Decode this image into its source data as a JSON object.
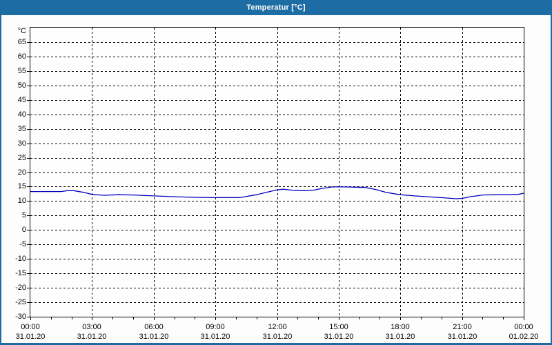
{
  "window": {
    "title": "Temperatur [°C]"
  },
  "colors": {
    "titlebar": "#1d6da4",
    "frame_border": "#1d6da4",
    "line": "#0000c0",
    "grid": "#000000",
    "background": "#fdfdfd"
  },
  "chart_data": {
    "type": "line",
    "title": "Temperatur [°C]",
    "y_unit_label": "°C",
    "ylim": [
      -30,
      70
    ],
    "ytick_step": 5,
    "ytick_labels": [
      "65",
      "60",
      "55",
      "50",
      "45",
      "40",
      "35",
      "30",
      "25",
      "20",
      "15",
      "10",
      "5",
      "0",
      "-5",
      "-10",
      "-15",
      "-20",
      "-25",
      "-30"
    ],
    "xlim_hours": [
      0,
      24
    ],
    "grid": "dashed",
    "minor_xtick_every_hours": 1,
    "xticks": [
      {
        "hour": 0,
        "time": "00:00",
        "date": "31.01.20"
      },
      {
        "hour": 3,
        "time": "03:00",
        "date": "31.01.20"
      },
      {
        "hour": 6,
        "time": "06:00",
        "date": "31.01.20"
      },
      {
        "hour": 9,
        "time": "09:00",
        "date": "31.01.20"
      },
      {
        "hour": 12,
        "time": "12:00",
        "date": "31.01.20"
      },
      {
        "hour": 15,
        "time": "15:00",
        "date": "31.01.20"
      },
      {
        "hour": 18,
        "time": "18:00",
        "date": "31.01.20"
      },
      {
        "hour": 21,
        "time": "21:00",
        "date": "31.01.20"
      },
      {
        "hour": 24,
        "time": "00:00",
        "date": "01.02.20"
      }
    ],
    "series": [
      {
        "name": "Temperatur",
        "color": "#0000c0",
        "points": [
          [
            0.0,
            13.3
          ],
          [
            1.0,
            13.3
          ],
          [
            1.5,
            13.3
          ],
          [
            1.8,
            13.6
          ],
          [
            2.1,
            13.6
          ],
          [
            2.6,
            13.0
          ],
          [
            3.0,
            12.3
          ],
          [
            3.6,
            12.0
          ],
          [
            4.3,
            12.2
          ],
          [
            5.0,
            12.1
          ],
          [
            6.0,
            11.8
          ],
          [
            7.0,
            11.5
          ],
          [
            8.0,
            11.3
          ],
          [
            9.0,
            11.2
          ],
          [
            10.2,
            11.2
          ],
          [
            11.0,
            12.2
          ],
          [
            11.7,
            13.4
          ],
          [
            12.0,
            13.9
          ],
          [
            12.3,
            14.1
          ],
          [
            12.8,
            13.7
          ],
          [
            13.3,
            13.6
          ],
          [
            13.8,
            13.8
          ],
          [
            14.2,
            14.4
          ],
          [
            14.7,
            14.9
          ],
          [
            15.3,
            14.9
          ],
          [
            15.8,
            14.8
          ],
          [
            16.3,
            14.7
          ],
          [
            16.8,
            14.0
          ],
          [
            17.3,
            13.0
          ],
          [
            17.8,
            12.4
          ],
          [
            18.0,
            12.2
          ],
          [
            18.7,
            11.8
          ],
          [
            19.3,
            11.5
          ],
          [
            20.0,
            11.2
          ],
          [
            20.7,
            10.8
          ],
          [
            21.0,
            10.9
          ],
          [
            21.4,
            11.5
          ],
          [
            22.0,
            12.1
          ],
          [
            22.7,
            12.2
          ],
          [
            23.3,
            12.2
          ],
          [
            23.7,
            12.3
          ],
          [
            24.0,
            12.7
          ]
        ]
      }
    ]
  }
}
